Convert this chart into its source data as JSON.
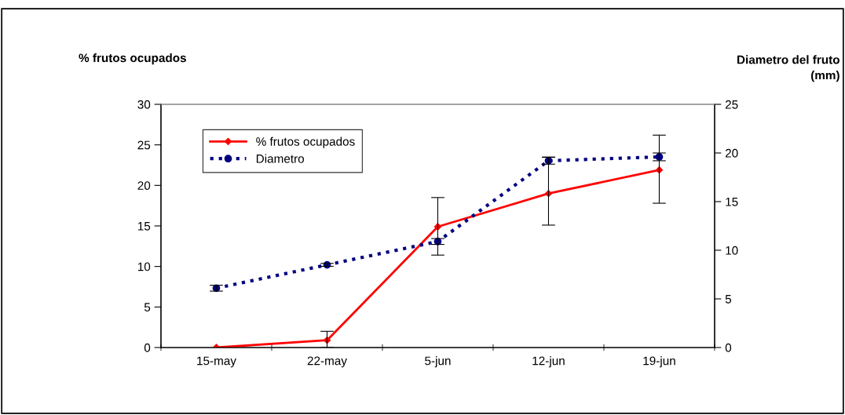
{
  "chart_data": {
    "type": "line",
    "ylabel": "% frutos ocupados",
    "y2label": "Diametro del fruto\n(mm)",
    "categories": [
      "15-may",
      "22-may",
      "5-jun",
      "12-jun",
      "19-jun"
    ],
    "series": [
      {
        "name": "% frutos ocupados",
        "color": "#ff0000",
        "values": [
          0,
          0.9,
          14.9,
          19.0,
          21.9
        ],
        "errors": [
          null,
          [
            0,
            2.0
          ],
          [
            11.4,
            18.5
          ],
          [
            15.1,
            23.5
          ],
          [
            17.8,
            26.2
          ]
        ],
        "marker": "diamond",
        "line_style": "solid"
      },
      {
        "name": "Diametro",
        "color": "#000080",
        "values": [
          6.1,
          8.5,
          10.9,
          19.2,
          19.6
        ],
        "errors": [
          0.3,
          0.15,
          0.3,
          0.35,
          0.4
        ],
        "marker": "circle",
        "line_style": "dotted",
        "axis": "y2"
      }
    ],
    "ylim": [
      0,
      30
    ],
    "yticks": [
      0,
      5,
      10,
      15,
      20,
      25,
      30
    ],
    "y2lim": [
      0,
      25
    ],
    "y2ticks": [
      0,
      5,
      10,
      15,
      20,
      25
    ],
    "grid": false,
    "legend": "top left"
  }
}
